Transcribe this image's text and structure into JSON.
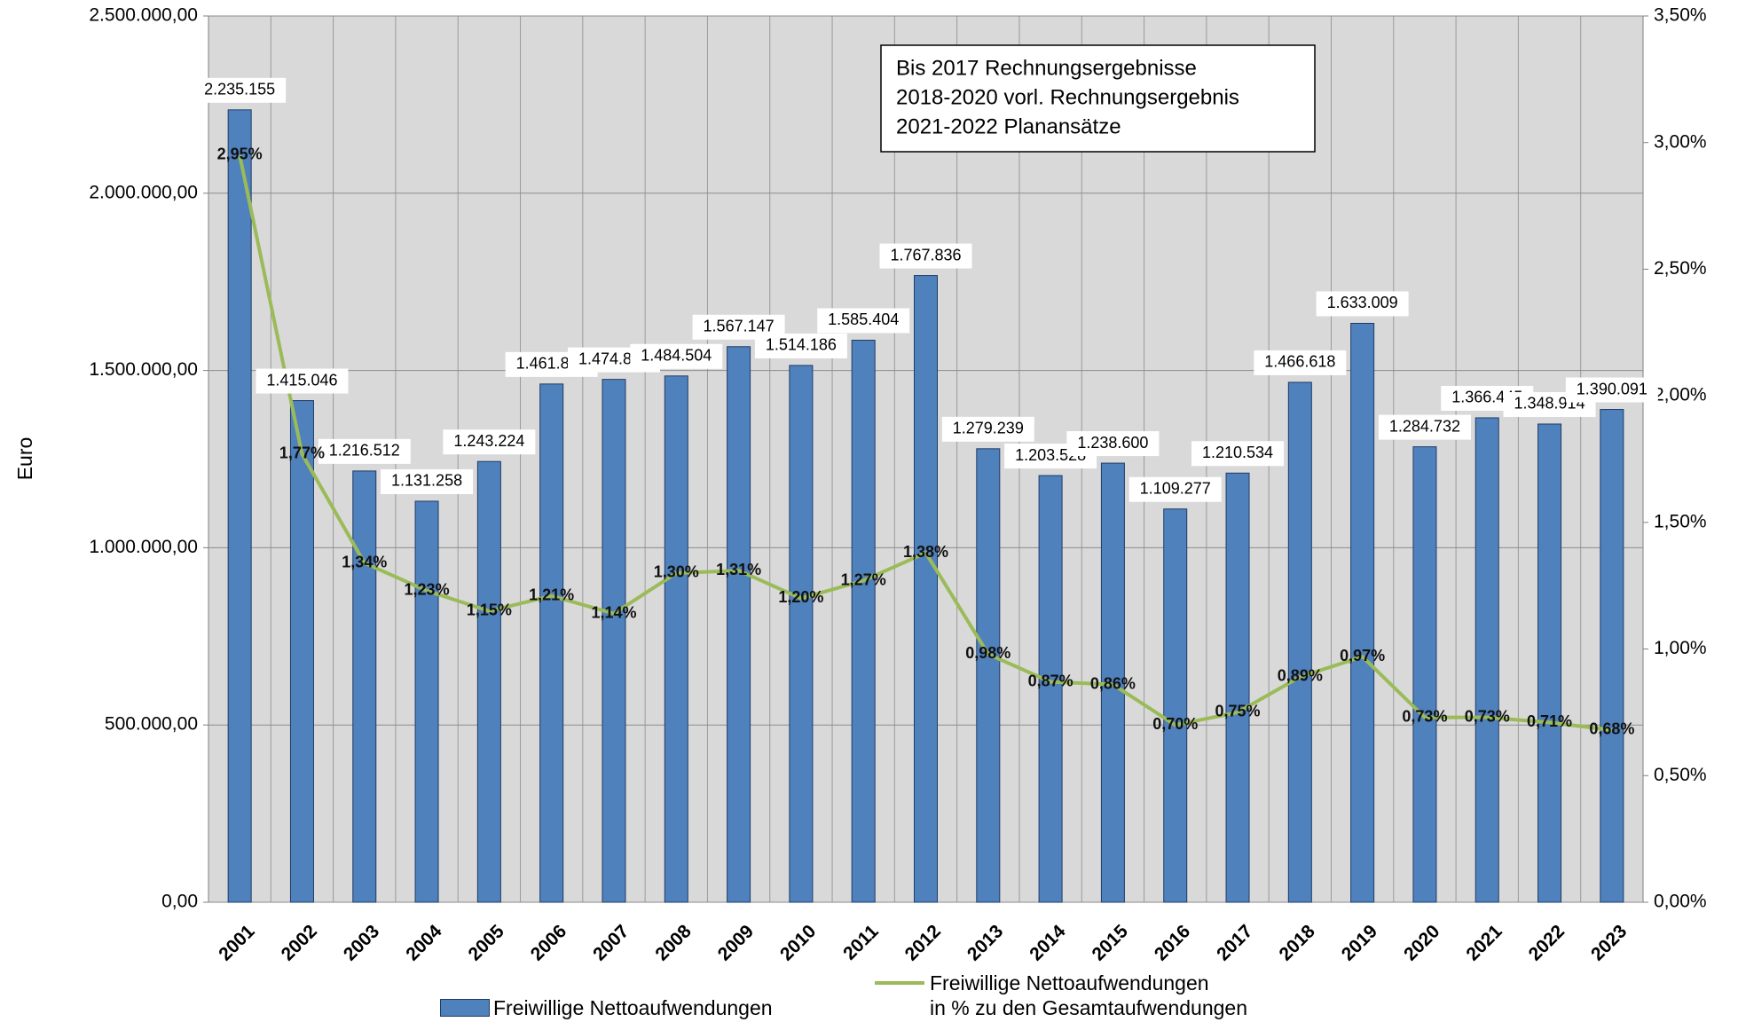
{
  "chart_data": {
    "type": "bar+line",
    "y_label": "Euro",
    "annotation": [
      "Bis 2017  Rechnungsergebnisse",
      "2018-2020 vorl. Rechnungsergebnis",
      "2021-2022  Planansätze"
    ],
    "categories": [
      "2001",
      "2002",
      "2003",
      "2004",
      "2005",
      "2006",
      "2007",
      "2008",
      "2009",
      "2010",
      "2011",
      "2012",
      "2013",
      "2014",
      "2015",
      "2016",
      "2017",
      "2018",
      "2019",
      "2020",
      "2021",
      "2022",
      "2023"
    ],
    "series": [
      {
        "name": "Freiwillige Nettoaufwendungen",
        "type": "bar",
        "color": "#4f81bd",
        "values": [
          2235155,
          1415046,
          1216512,
          1131258,
          1243224,
          1461839,
          1474885,
          1484504,
          1567147,
          1514186,
          1585404,
          1767836,
          1279239,
          1203528,
          1238600,
          1109277,
          1210534,
          1466618,
          1633009,
          1284732,
          1366445,
          1348914,
          1390091
        ],
        "value_labels": [
          "2.235.155",
          "1.415.046",
          "1.216.512",
          "1.131.258",
          "1.243.224",
          "1.461.839",
          "1.474.885",
          "1.484.504",
          "1.567.147",
          "1.514.186",
          "1.585.404",
          "1.767.836",
          "1.279.239",
          "1.203.528",
          "1.238.600",
          "1.109.277",
          "1.210.534",
          "1.466.618",
          "1.633.009",
          "1.284.732",
          "1.366.445",
          "1.348.914",
          "1.390.091"
        ]
      },
      {
        "name": "Freiwillige Nettoaufwendungen\nin % zu den Gesamtaufwendungen",
        "type": "line",
        "axis": "y2",
        "color": "#9bbb59",
        "values": [
          2.95,
          1.77,
          1.34,
          1.23,
          1.15,
          1.21,
          1.14,
          1.3,
          1.31,
          1.2,
          1.27,
          1.38,
          0.98,
          0.87,
          0.86,
          0.7,
          0.75,
          0.89,
          0.97,
          0.73,
          0.73,
          0.71,
          0.68
        ],
        "value_labels": [
          "2,95%",
          "1,77%",
          "1,34%",
          "1,23%",
          "1,15%",
          "1,21%",
          "1,14%",
          "1,30%",
          "1,31%",
          "1,20%",
          "1,27%",
          "1,38%",
          "0,98%",
          "0,87%",
          "0,86%",
          "0,70%",
          "0,75%",
          "0,89%",
          "0,97%",
          "0,73%",
          "0,73%",
          "0,71%",
          "0,68%"
        ]
      }
    ],
    "ylim": [
      0,
      2500000
    ],
    "yticks": [
      {
        "value": 0,
        "label": "0,00"
      },
      {
        "value": 500000,
        "label": "500.000,00"
      },
      {
        "value": 1000000,
        "label": "1.000.000,00"
      },
      {
        "value": 1500000,
        "label": "1.500.000,00"
      },
      {
        "value": 2000000,
        "label": "2.000.000,00"
      },
      {
        "value": 2500000,
        "label": "2.500.000,00"
      }
    ],
    "y2lim": [
      0,
      3.5
    ],
    "y2ticks": [
      {
        "value": 0,
        "label": "0,00%"
      },
      {
        "value": 0.5,
        "label": "0,50%"
      },
      {
        "value": 1,
        "label": "1,00%"
      },
      {
        "value": 1.5,
        "label": "1,50%"
      },
      {
        "value": 2,
        "label": "2,00%"
      },
      {
        "value": 2.5,
        "label": "2,50%"
      },
      {
        "value": 3,
        "label": "3,00%"
      },
      {
        "value": 3.5,
        "label": "3,50%"
      }
    ],
    "grid": true
  }
}
